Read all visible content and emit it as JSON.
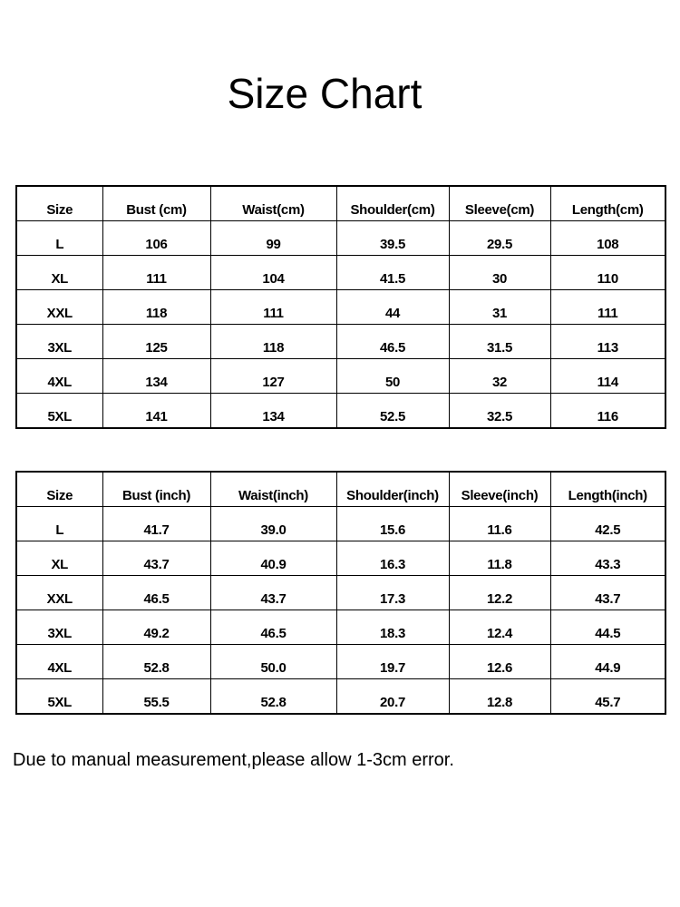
{
  "title": "Size Chart",
  "tables": [
    {
      "headers": [
        "Size",
        "Bust (cm)",
        "Waist(cm)",
        "Shoulder(cm)",
        "Sleeve(cm)",
        "Length(cm)"
      ],
      "rows": [
        [
          "L",
          "106",
          "99",
          "39.5",
          "29.5",
          "108"
        ],
        [
          "XL",
          "111",
          "104",
          "41.5",
          "30",
          "110"
        ],
        [
          "XXL",
          "118",
          "111",
          "44",
          "31",
          "111"
        ],
        [
          "3XL",
          "125",
          "118",
          "46.5",
          "31.5",
          "113"
        ],
        [
          "4XL",
          "134",
          "127",
          "50",
          "32",
          "114"
        ],
        [
          "5XL",
          "141",
          "134",
          "52.5",
          "32.5",
          "116"
        ]
      ]
    },
    {
      "headers": [
        "Size",
        "Bust (inch)",
        "Waist(inch)",
        "Shoulder(inch)",
        "Sleeve(inch)",
        "Length(inch)"
      ],
      "rows": [
        [
          "L",
          "41.7",
          "39.0",
          "15.6",
          "11.6",
          "42.5"
        ],
        [
          "XL",
          "43.7",
          "40.9",
          "16.3",
          "11.8",
          "43.3"
        ],
        [
          "XXL",
          "46.5",
          "43.7",
          "17.3",
          "12.2",
          "43.7"
        ],
        [
          "3XL",
          "49.2",
          "46.5",
          "18.3",
          "12.4",
          "44.5"
        ],
        [
          "4XL",
          "52.8",
          "50.0",
          "19.7",
          "12.6",
          "44.9"
        ],
        [
          "5XL",
          "55.5",
          "52.8",
          "20.7",
          "12.8",
          "45.7"
        ]
      ]
    }
  ],
  "note": "Due to manual measurement,please allow 1-3cm error."
}
